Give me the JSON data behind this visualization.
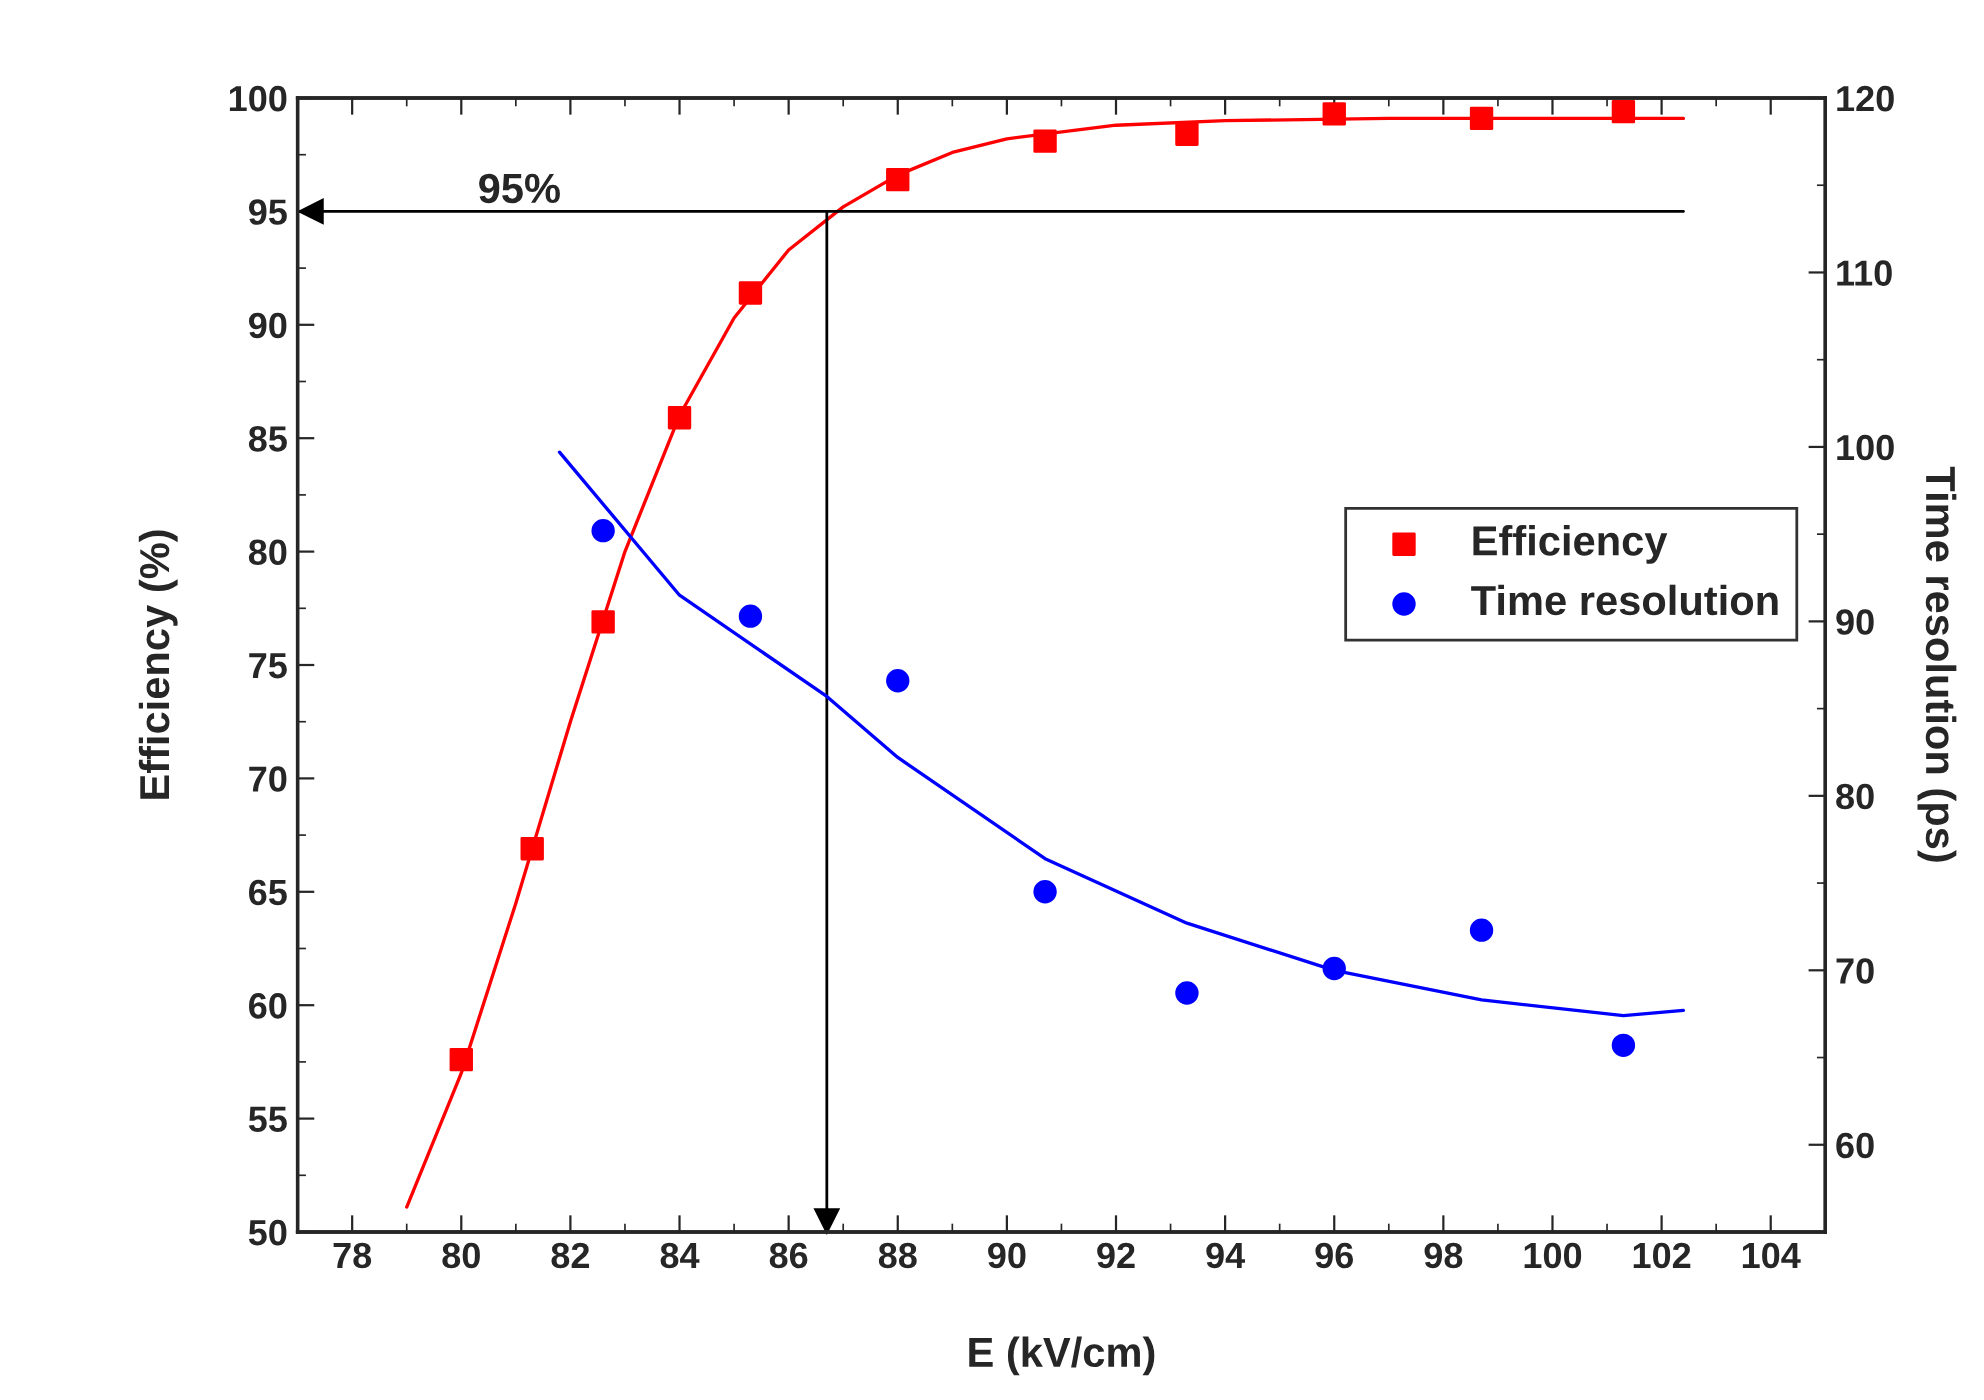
{
  "chart_data": {
    "type": "scatter",
    "xlabel": "E (kV/cm)",
    "ylabel": "Efficiency (%)",
    "y2label": "Time resolution (ps)",
    "xlim": [
      77,
      105
    ],
    "xticks": [
      78,
      80,
      82,
      84,
      86,
      88,
      90,
      92,
      94,
      96,
      98,
      100,
      102,
      104
    ],
    "ylim": [
      50,
      100
    ],
    "yticks": [
      50,
      55,
      60,
      65,
      70,
      75,
      80,
      85,
      90,
      95,
      100
    ],
    "y2lim": [
      55,
      120
    ],
    "y2ticks": [
      60,
      70,
      80,
      90,
      100,
      110,
      120
    ],
    "legend": "center right",
    "grid": false,
    "series": [
      {
        "name": "Efficiency",
        "marker": "square",
        "color": "#ff0000",
        "x": [
          80,
          81.3,
          82.6,
          84,
          85.3,
          88,
          90.7,
          93.3,
          96,
          98.7,
          101.3
        ],
        "values": [
          57.6,
          66.9,
          76.9,
          85.9,
          91.4,
          96.4,
          98.1,
          98.4,
          99.3,
          99.1,
          99.4
        ]
      },
      {
        "name": "Time resolution",
        "marker": "circle",
        "axis": "y2",
        "color": "#0000ff",
        "x": [
          82.6,
          85.3,
          88,
          90.7,
          93.3,
          96,
          98.7,
          101.3
        ],
        "values": [
          95.2,
          90.3,
          86.6,
          74.5,
          68.7,
          70.1,
          72.3,
          65.7
        ]
      },
      {
        "type": "line",
        "marker": "none",
        "line_style": "solid",
        "color": "#ff0000",
        "x": [
          79,
          80,
          81,
          82,
          83,
          84,
          85,
          86,
          87,
          88,
          89,
          90,
          92,
          94,
          97,
          102.4
        ],
        "values": [
          51.1,
          57.0,
          64.5,
          72.5,
          80.0,
          86.0,
          90.3,
          93.3,
          95.2,
          96.6,
          97.6,
          98.2,
          98.8,
          99.0,
          99.1,
          99.1
        ]
      },
      {
        "type": "line",
        "marker": "none",
        "line_style": "solid",
        "axis": "y2",
        "color": "#0000ff",
        "x": [
          81.8,
          84,
          86.7,
          88,
          90.7,
          93.3,
          96,
          98.7,
          101.3,
          102.4
        ],
        "values": [
          99.7,
          91.5,
          85.7,
          82.2,
          76.4,
          72.7,
          70.0,
          68.3,
          67.4,
          67.7
        ]
      }
    ],
    "ref_lines": [
      {
        "axis": "y",
        "value": 95,
        "label": "95%",
        "color": "#000000"
      },
      {
        "axis": "x",
        "value": 86.7,
        "color": "#000000"
      }
    ]
  }
}
